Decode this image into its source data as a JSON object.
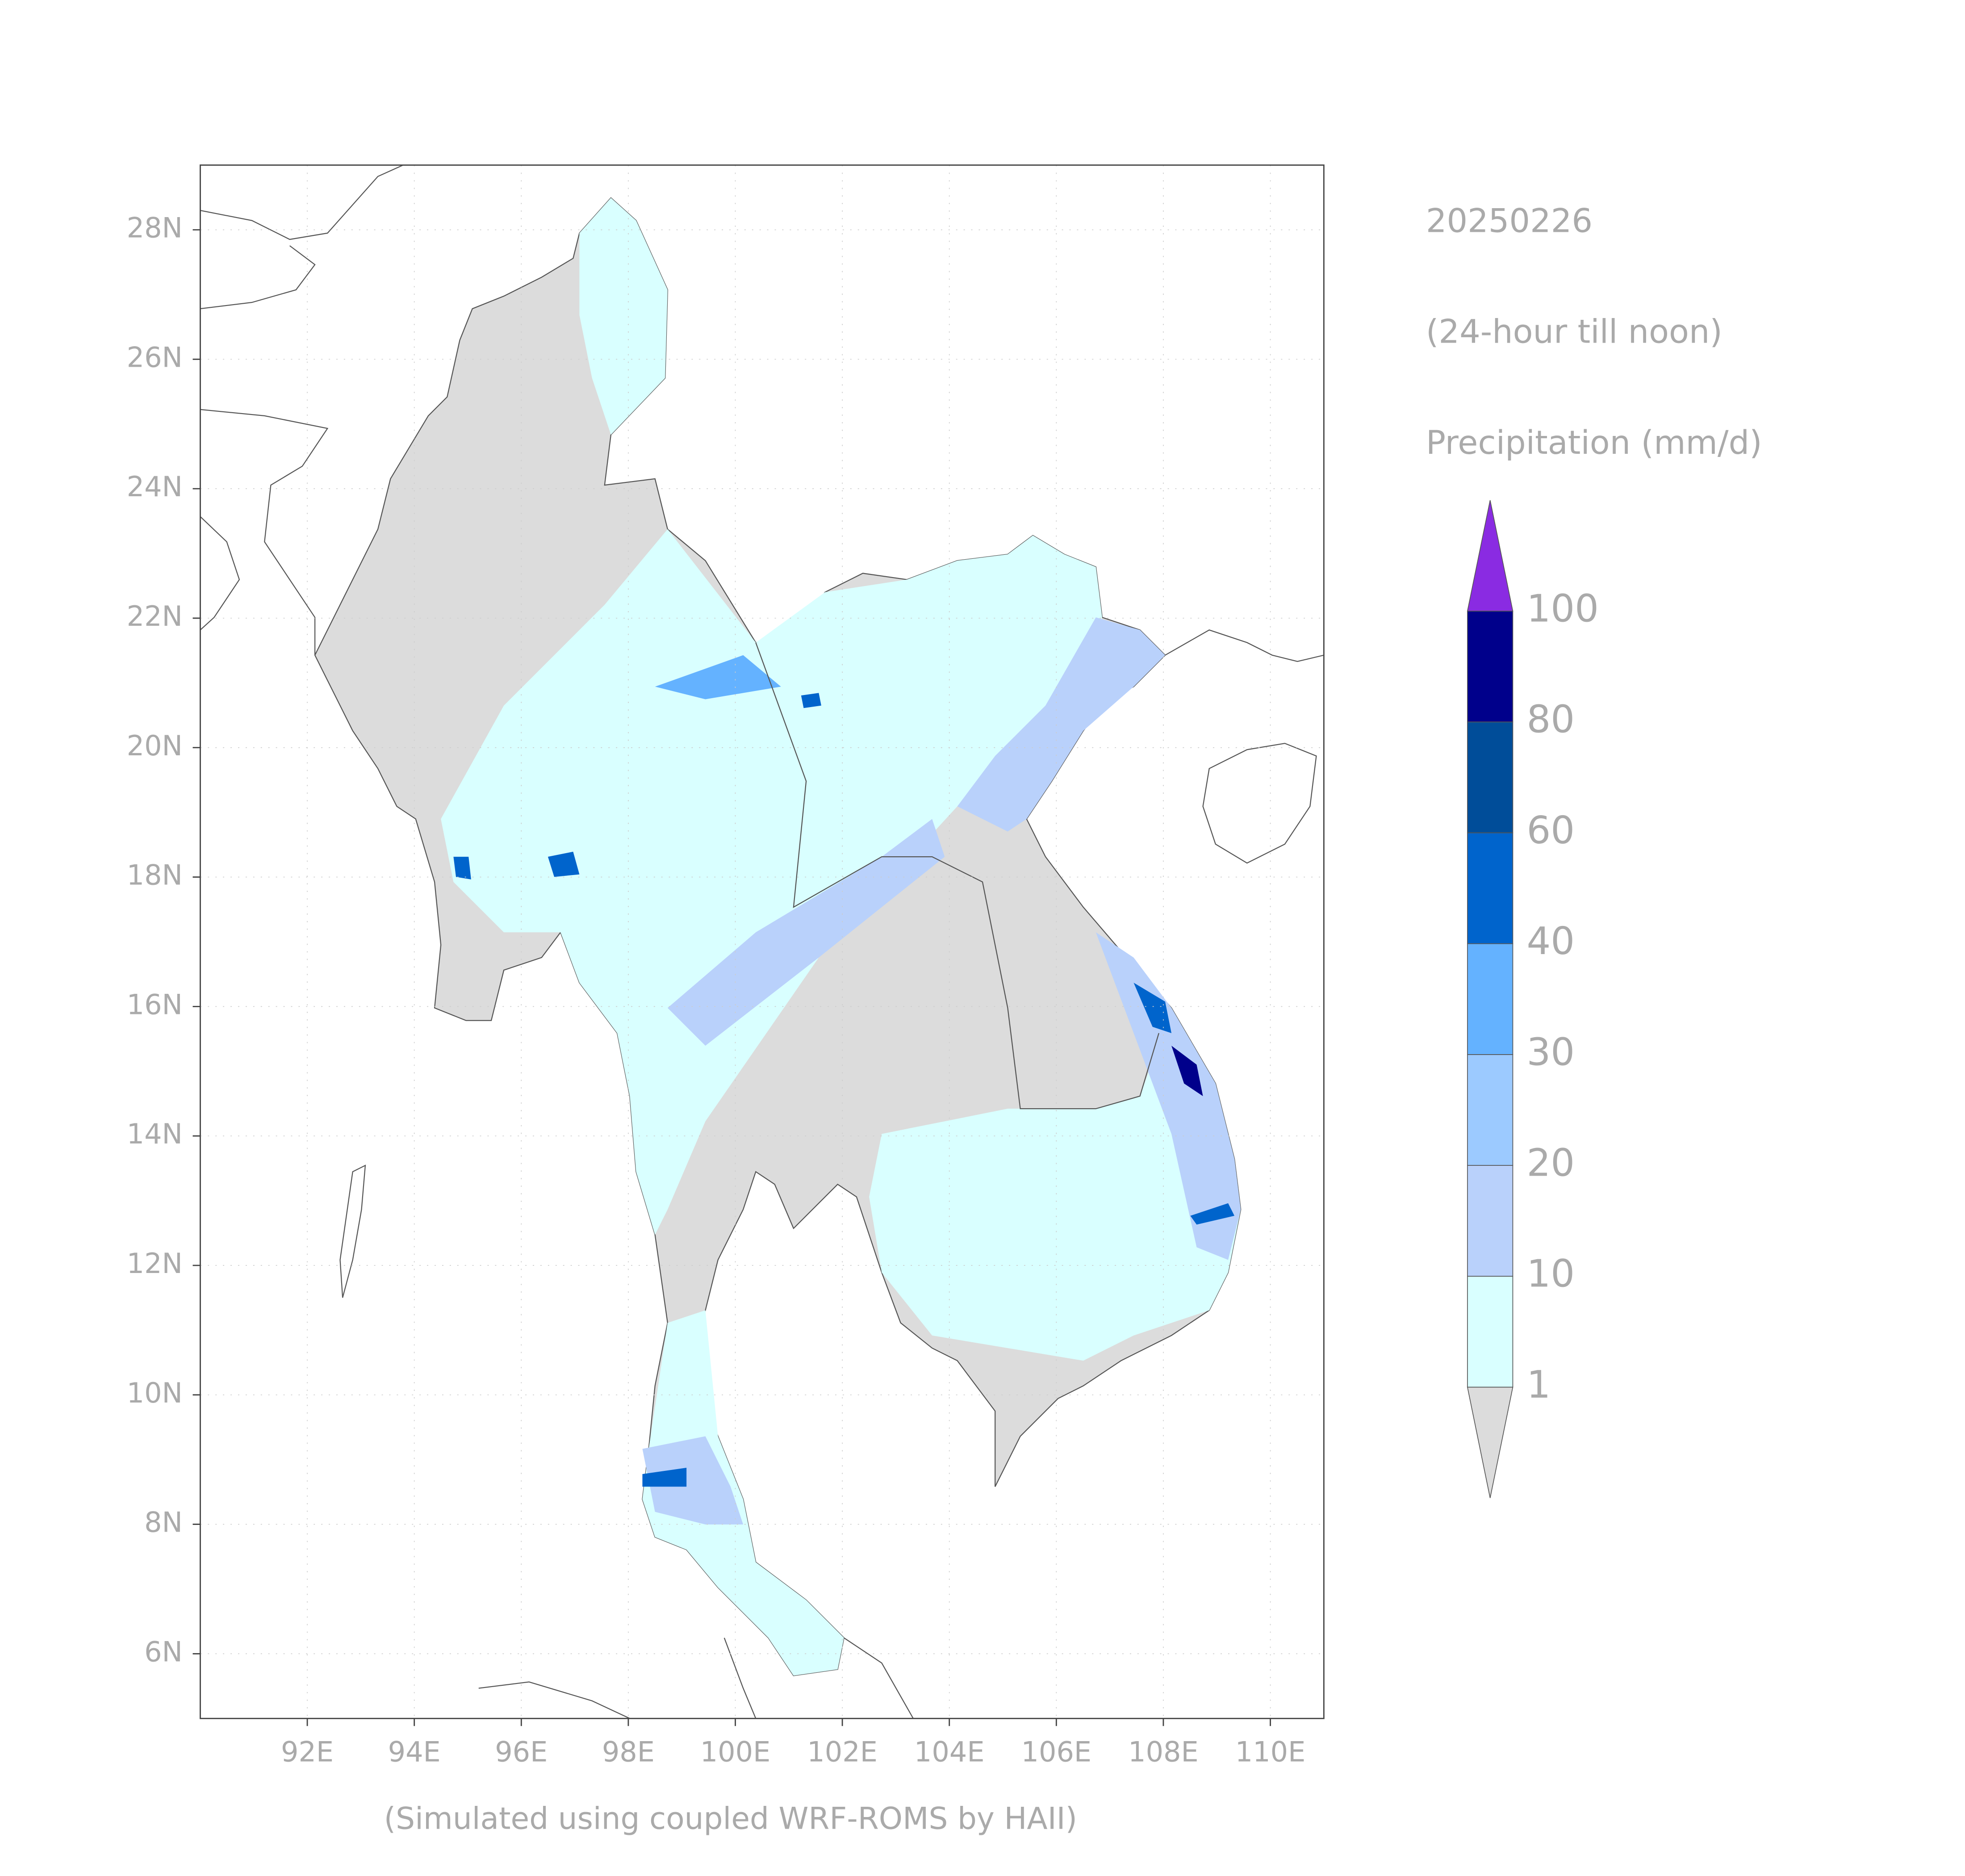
{
  "chart_data": {
    "type": "map",
    "title": "20250226",
    "subtitle": "(24-hour till noon)",
    "colorbar_label": "Precipitation (mm/d)",
    "caption": "(Simulated using coupled WRF-ROMS by HAII)",
    "xlim": [
      90,
      111
    ],
    "ylim": [
      5,
      29
    ],
    "grid": true,
    "xticks": [
      {
        "value": 92,
        "label": "92E"
      },
      {
        "value": 94,
        "label": "94E"
      },
      {
        "value": 96,
        "label": "96E"
      },
      {
        "value": 98,
        "label": "98E"
      },
      {
        "value": 100,
        "label": "100E"
      },
      {
        "value": 102,
        "label": "102E"
      },
      {
        "value": 104,
        "label": "104E"
      },
      {
        "value": 106,
        "label": "106E"
      },
      {
        "value": 108,
        "label": "108E"
      },
      {
        "value": 110,
        "label": "110E"
      }
    ],
    "yticks": [
      {
        "value": 6,
        "label": "6N"
      },
      {
        "value": 8,
        "label": "8N"
      },
      {
        "value": 10,
        "label": "10N"
      },
      {
        "value": 12,
        "label": "12N"
      },
      {
        "value": 14,
        "label": "14N"
      },
      {
        "value": 16,
        "label": "16N"
      },
      {
        "value": 18,
        "label": "18N"
      },
      {
        "value": 20,
        "label": "20N"
      },
      {
        "value": 22,
        "label": "22N"
      },
      {
        "value": 24,
        "label": "24N"
      },
      {
        "value": 26,
        "label": "26N"
      },
      {
        "value": 28,
        "label": "28N"
      }
    ],
    "colorbar": {
      "levels": [
        1,
        10,
        20,
        30,
        40,
        60,
        80,
        100
      ],
      "colors": [
        "#d9ffff",
        "#b9d1fb",
        "#9ccaff",
        "#64b2ff",
        "#0064cc",
        "#004d99",
        "#00008b"
      ],
      "under_color": "#dcdcdc",
      "over_color": "#8a2be2"
    }
  }
}
